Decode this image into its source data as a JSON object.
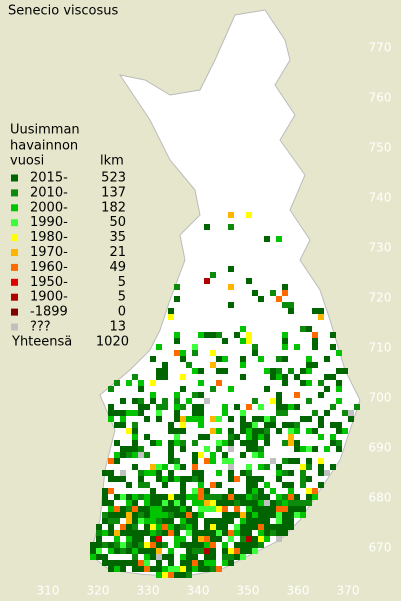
{
  "title": "Senecio viscosus",
  "legend": {
    "heading": [
      "Uusimman",
      "havainnon"
    ],
    "year_header": "vuosi",
    "count_header": "lkm",
    "rows": [
      {
        "label": "2015-",
        "count": 523,
        "color": "#006400"
      },
      {
        "label": "2010-",
        "count": 137,
        "color": "#0b8a0b"
      },
      {
        "label": "2000-",
        "count": 182,
        "color": "#00c400"
      },
      {
        "label": "1990-",
        "count": 50,
        "color": "#3cff3c"
      },
      {
        "label": "1980-",
        "count": 35,
        "color": "#ffff00"
      },
      {
        "label": "1970-",
        "count": 21,
        "color": "#ffb400"
      },
      {
        "label": "1960-",
        "count": 49,
        "color": "#ff6a00"
      },
      {
        "label": "1950-",
        "count": 5,
        "color": "#e00000"
      },
      {
        "label": "1900-",
        "count": 5,
        "color": "#b00000"
      },
      {
        "label": "-1899",
        "count": 0,
        "color": "#800000"
      },
      {
        "label": "???",
        "count": 13,
        "color": "#c0c0c0"
      }
    ],
    "total_label": "Yhteensä",
    "total": 1020
  },
  "xticks": [
    310,
    320,
    330,
    340,
    350,
    360,
    370
  ],
  "yticks": [
    670,
    680,
    690,
    700,
    710,
    720,
    730,
    740,
    750,
    760,
    770
  ]
}
